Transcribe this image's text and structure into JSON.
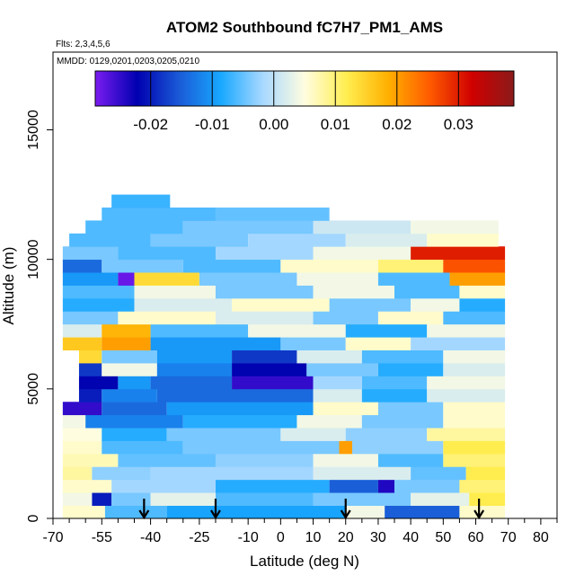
{
  "chart_data": {
    "type": "heatmap",
    "title": "ATOM2 Southbound fC7H7_PM1_AMS",
    "flights_note": "Flts: 2,3,4,5,6",
    "dates_note": "MMDD: 0129,0201,0203,0205,0210",
    "xlabel": "Latitude (deg N)",
    "ylabel": "Altitude (m)",
    "xlim": [
      -70,
      85
    ],
    "ylim": [
      0,
      18000
    ],
    "x_ticks": [
      "-70",
      "-55",
      "-40",
      "-25",
      "-10",
      "0",
      "10",
      "20",
      "30",
      "40",
      "50",
      "60",
      "70",
      "80"
    ],
    "x_tick_values": [
      -70,
      -55,
      -40,
      -25,
      -10,
      0,
      10,
      20,
      30,
      40,
      50,
      60,
      70,
      80
    ],
    "x_minor_ticks": [
      -65,
      -60,
      -50,
      -45,
      -35,
      -30,
      -20,
      -15,
      -5,
      5,
      15,
      25,
      35,
      45,
      55,
      65,
      75,
      85
    ],
    "y_ticks": [
      "0",
      "5000",
      "10000",
      "15000"
    ],
    "y_tick_values": [
      0,
      5000,
      10000,
      15000
    ],
    "colorbar": {
      "min": -0.029,
      "max": 0.039,
      "ticks": [
        "-0.02",
        "-0.01",
        "0.00",
        "0.01",
        "0.02",
        "0.03"
      ],
      "tick_values": [
        -0.02,
        -0.01,
        0.0,
        0.01,
        0.02,
        0.03
      ],
      "colors": [
        "#7a1cf0",
        "#0000b0",
        "#1a5ad6",
        "#18a8ff",
        "#a8d8ff",
        "#fffde0",
        "#ffee50",
        "#ffb000",
        "#ff5a00",
        "#d00000",
        "#8b1a1a"
      ]
    },
    "arrow_latitudes": [
      -42,
      -20,
      20,
      61
    ],
    "grid": false,
    "legend": "colorbar top-inside",
    "bands": [
      {
        "alt": 250,
        "segments": [
          {
            "x0": -67,
            "x1": -54,
            "v": 0.006
          },
          {
            "x0": -54,
            "x1": -35,
            "v": -0.006
          },
          {
            "x0": -35,
            "x1": 20,
            "v": -0.009
          },
          {
            "x0": 20,
            "x1": 32,
            "v": 0.004
          },
          {
            "x0": 32,
            "x1": 55,
            "v": -0.015
          },
          {
            "x0": 55,
            "x1": 69,
            "v": 0.006
          }
        ]
      },
      {
        "alt": 750,
        "segments": [
          {
            "x0": -67,
            "x1": -58,
            "v": 0.004
          },
          {
            "x0": -58,
            "x1": -52,
            "v": -0.02
          },
          {
            "x0": -52,
            "x1": -40,
            "v": -0.004
          },
          {
            "x0": -40,
            "x1": -20,
            "v": 0.003
          },
          {
            "x0": -20,
            "x1": 10,
            "v": -0.006
          },
          {
            "x0": 10,
            "x1": 40,
            "v": -0.004
          },
          {
            "x0": 40,
            "x1": 58,
            "v": 0.003
          },
          {
            "x0": 58,
            "x1": 69,
            "v": 0.012
          }
        ]
      },
      {
        "alt": 1250,
        "segments": [
          {
            "x0": -67,
            "x1": -52,
            "v": 0.006
          },
          {
            "x0": -52,
            "x1": -20,
            "v": -0.002
          },
          {
            "x0": -20,
            "x1": 15,
            "v": -0.008
          },
          {
            "x0": 15,
            "x1": 30,
            "v": -0.015
          },
          {
            "x0": 30,
            "x1": 35,
            "v": -0.024
          },
          {
            "x0": 35,
            "x1": 55,
            "v": -0.004
          },
          {
            "x0": 55,
            "x1": 69,
            "v": 0.01
          }
        ]
      },
      {
        "alt": 1750,
        "segments": [
          {
            "x0": -67,
            "x1": -58,
            "v": 0.008
          },
          {
            "x0": -58,
            "x1": -40,
            "v": -0.003
          },
          {
            "x0": -40,
            "x1": 10,
            "v": -0.002
          },
          {
            "x0": 10,
            "x1": 40,
            "v": 0.002
          },
          {
            "x0": 40,
            "x1": 57,
            "v": -0.005
          },
          {
            "x0": 57,
            "x1": 69,
            "v": 0.012
          }
        ]
      },
      {
        "alt": 2250,
        "segments": [
          {
            "x0": -67,
            "x1": -50,
            "v": 0.007
          },
          {
            "x0": -50,
            "x1": -20,
            "v": -0.005
          },
          {
            "x0": -20,
            "x1": 10,
            "v": -0.003
          },
          {
            "x0": 10,
            "x1": 30,
            "v": 0.004
          },
          {
            "x0": 30,
            "x1": 50,
            "v": -0.006
          },
          {
            "x0": 50,
            "x1": 69,
            "v": 0.01
          }
        ]
      },
      {
        "alt": 2750,
        "segments": [
          {
            "x0": -67,
            "x1": -55,
            "v": 0.006
          },
          {
            "x0": -55,
            "x1": -30,
            "v": -0.006
          },
          {
            "x0": -30,
            "x1": 18,
            "v": -0.004
          },
          {
            "x0": 18,
            "x1": 22,
            "v": 0.02
          },
          {
            "x0": 22,
            "x1": 50,
            "v": -0.003
          },
          {
            "x0": 50,
            "x1": 69,
            "v": 0.012
          }
        ]
      },
      {
        "alt": 3250,
        "segments": [
          {
            "x0": -67,
            "x1": -55,
            "v": 0.005
          },
          {
            "x0": -55,
            "x1": -35,
            "v": -0.008
          },
          {
            "x0": -35,
            "x1": 0,
            "v": -0.004
          },
          {
            "x0": 0,
            "x1": 20,
            "v": 0.002
          },
          {
            "x0": 20,
            "x1": 45,
            "v": -0.003
          },
          {
            "x0": 45,
            "x1": 69,
            "v": 0.008
          }
        ]
      },
      {
        "alt": 3750,
        "segments": [
          {
            "x0": -67,
            "x1": -60,
            "v": 0.004
          },
          {
            "x0": -60,
            "x1": -30,
            "v": -0.012
          },
          {
            "x0": -30,
            "x1": 5,
            "v": -0.008
          },
          {
            "x0": 5,
            "x1": 25,
            "v": 0.004
          },
          {
            "x0": 25,
            "x1": 50,
            "v": -0.004
          },
          {
            "x0": 50,
            "x1": 69,
            "v": 0.006
          }
        ]
      },
      {
        "alt": 4250,
        "segments": [
          {
            "x0": -67,
            "x1": -55,
            "v": -0.025
          },
          {
            "x0": -55,
            "x1": -35,
            "v": -0.014
          },
          {
            "x0": -35,
            "x1": 10,
            "v": -0.01
          },
          {
            "x0": 10,
            "x1": 30,
            "v": 0.006
          },
          {
            "x0": 30,
            "x1": 50,
            "v": -0.004
          },
          {
            "x0": 50,
            "x1": 69,
            "v": 0.006
          }
        ]
      },
      {
        "alt": 4750,
        "segments": [
          {
            "x0": -62,
            "x1": -55,
            "v": -0.02
          },
          {
            "x0": -55,
            "x1": -38,
            "v": -0.012
          },
          {
            "x0": -38,
            "x1": 10,
            "v": -0.014
          },
          {
            "x0": 10,
            "x1": 25,
            "v": 0.002
          },
          {
            "x0": 25,
            "x1": 45,
            "v": -0.008
          },
          {
            "x0": 45,
            "x1": 69,
            "v": 0.002
          }
        ]
      },
      {
        "alt": 5250,
        "segments": [
          {
            "x0": -62,
            "x1": -50,
            "v": -0.022
          },
          {
            "x0": -50,
            "x1": -40,
            "v": -0.01
          },
          {
            "x0": -40,
            "x1": -15,
            "v": -0.014
          },
          {
            "x0": -15,
            "x1": 10,
            "v": -0.025
          },
          {
            "x0": 10,
            "x1": 25,
            "v": -0.002
          },
          {
            "x0": 25,
            "x1": 45,
            "v": -0.006
          },
          {
            "x0": 45,
            "x1": 69,
            "v": 0.004
          }
        ]
      },
      {
        "alt": 5750,
        "segments": [
          {
            "x0": -62,
            "x1": -55,
            "v": -0.018
          },
          {
            "x0": -55,
            "x1": -38,
            "v": 0.004
          },
          {
            "x0": -38,
            "x1": -15,
            "v": -0.012
          },
          {
            "x0": -15,
            "x1": 8,
            "v": -0.022
          },
          {
            "x0": 8,
            "x1": 30,
            "v": -0.004
          },
          {
            "x0": 30,
            "x1": 50,
            "v": -0.008
          },
          {
            "x0": 50,
            "x1": 69,
            "v": 0.002
          }
        ]
      },
      {
        "alt": 6250,
        "segments": [
          {
            "x0": -62,
            "x1": -55,
            "v": 0.014
          },
          {
            "x0": -55,
            "x1": -38,
            "v": -0.004
          },
          {
            "x0": -38,
            "x1": -15,
            "v": -0.01
          },
          {
            "x0": -15,
            "x1": 5,
            "v": -0.018
          },
          {
            "x0": 5,
            "x1": 25,
            "v": 0.002
          },
          {
            "x0": 25,
            "x1": 50,
            "v": -0.006
          },
          {
            "x0": 50,
            "x1": 69,
            "v": 0.004
          }
        ]
      },
      {
        "alt": 6750,
        "segments": [
          {
            "x0": -67,
            "x1": -55,
            "v": 0.016
          },
          {
            "x0": -55,
            "x1": -40,
            "v": 0.02
          },
          {
            "x0": -40,
            "x1": 0,
            "v": -0.01
          },
          {
            "x0": 0,
            "x1": 20,
            "v": -0.004
          },
          {
            "x0": 20,
            "x1": 40,
            "v": 0.006
          },
          {
            "x0": 40,
            "x1": 69,
            "v": -0.002
          }
        ]
      },
      {
        "alt": 7250,
        "segments": [
          {
            "x0": -67,
            "x1": -55,
            "v": 0.002
          },
          {
            "x0": -55,
            "x1": -40,
            "v": 0.018
          },
          {
            "x0": -40,
            "x1": -10,
            "v": -0.006
          },
          {
            "x0": -10,
            "x1": 20,
            "v": 0.004
          },
          {
            "x0": 20,
            "x1": 45,
            "v": -0.008
          },
          {
            "x0": 45,
            "x1": 69,
            "v": 0.004
          }
        ]
      },
      {
        "alt": 7750,
        "segments": [
          {
            "x0": -67,
            "x1": -50,
            "v": -0.004
          },
          {
            "x0": -50,
            "x1": -20,
            "v": 0.006
          },
          {
            "x0": -20,
            "x1": 10,
            "v": 0.002
          },
          {
            "x0": 10,
            "x1": 30,
            "v": -0.004
          },
          {
            "x0": 30,
            "x1": 50,
            "v": 0.006
          },
          {
            "x0": 50,
            "x1": 69,
            "v": -0.006
          }
        ]
      },
      {
        "alt": 8250,
        "segments": [
          {
            "x0": -67,
            "x1": -45,
            "v": -0.008
          },
          {
            "x0": -45,
            "x1": -15,
            "v": 0.002
          },
          {
            "x0": -15,
            "x1": 15,
            "v": 0.006
          },
          {
            "x0": 15,
            "x1": 40,
            "v": -0.004
          },
          {
            "x0": 40,
            "x1": 55,
            "v": 0.004
          },
          {
            "x0": 55,
            "x1": 69,
            "v": -0.008
          }
        ]
      },
      {
        "alt": 8750,
        "segments": [
          {
            "x0": -67,
            "x1": -45,
            "v": -0.006
          },
          {
            "x0": -45,
            "x1": -20,
            "v": 0.004
          },
          {
            "x0": -20,
            "x1": 10,
            "v": -0.004
          },
          {
            "x0": 10,
            "x1": 35,
            "v": 0.004
          },
          {
            "x0": 35,
            "x1": 55,
            "v": -0.006
          },
          {
            "x0": 55,
            "x1": 69,
            "v": 0.006
          }
        ]
      },
      {
        "alt": 9250,
        "segments": [
          {
            "x0": -67,
            "x1": -50,
            "v": -0.01
          },
          {
            "x0": -50,
            "x1": -45,
            "v": -0.028
          },
          {
            "x0": -45,
            "x1": -25,
            "v": 0.014
          },
          {
            "x0": -25,
            "x1": 5,
            "v": -0.004
          },
          {
            "x0": 5,
            "x1": 30,
            "v": 0.004
          },
          {
            "x0": 30,
            "x1": 52,
            "v": -0.006
          },
          {
            "x0": 52,
            "x1": 69,
            "v": 0.02
          }
        ]
      },
      {
        "alt": 9750,
        "segments": [
          {
            "x0": -67,
            "x1": -55,
            "v": -0.014
          },
          {
            "x0": -55,
            "x1": -30,
            "v": -0.004
          },
          {
            "x0": -30,
            "x1": 0,
            "v": -0.006
          },
          {
            "x0": 0,
            "x1": 30,
            "v": 0.006
          },
          {
            "x0": 30,
            "x1": 50,
            "v": 0.01
          },
          {
            "x0": 50,
            "x1": 69,
            "v": 0.026
          }
        ]
      },
      {
        "alt": 10250,
        "segments": [
          {
            "x0": -67,
            "x1": -50,
            "v": -0.004
          },
          {
            "x0": -50,
            "x1": -20,
            "v": -0.006
          },
          {
            "x0": -20,
            "x1": 10,
            "v": -0.002
          },
          {
            "x0": 10,
            "x1": 40,
            "v": 0.004
          },
          {
            "x0": 40,
            "x1": 69,
            "v": 0.03
          }
        ]
      },
      {
        "alt": 10750,
        "segments": [
          {
            "x0": -65,
            "x1": -40,
            "v": -0.006
          },
          {
            "x0": -40,
            "x1": -10,
            "v": -0.004
          },
          {
            "x0": -10,
            "x1": 20,
            "v": -0.002
          },
          {
            "x0": 20,
            "x1": 45,
            "v": 0.002
          },
          {
            "x0": 45,
            "x1": 67,
            "v": 0.006
          }
        ]
      },
      {
        "alt": 11250,
        "segments": [
          {
            "x0": -60,
            "x1": -30,
            "v": -0.006
          },
          {
            "x0": -30,
            "x1": 10,
            "v": -0.004
          },
          {
            "x0": 10,
            "x1": 40,
            "v": 0.001
          },
          {
            "x0": 40,
            "x1": 67,
            "v": 0.004
          }
        ]
      },
      {
        "alt": 11750,
        "segments": [
          {
            "x0": -55,
            "x1": -20,
            "v": -0.006
          },
          {
            "x0": -20,
            "x1": 15,
            "v": -0.005
          }
        ]
      },
      {
        "alt": 12250,
        "segments": [
          {
            "x0": -52,
            "x1": -34,
            "v": -0.007
          }
        ]
      }
    ]
  }
}
